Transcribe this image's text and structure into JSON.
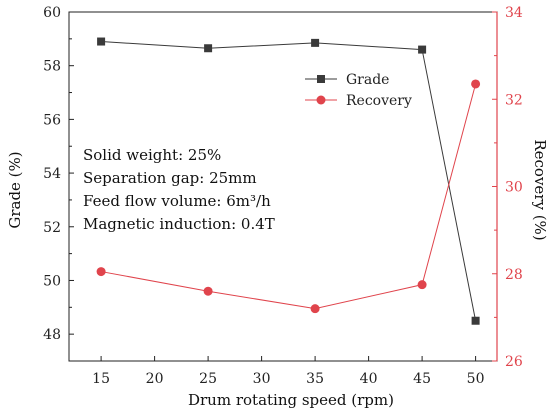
{
  "chart_data": {
    "type": "line",
    "x": [
      15,
      25,
      35,
      45,
      50
    ],
    "xlabel": "Drum rotating speed (rpm)",
    "xticks": [
      15,
      20,
      25,
      30,
      35,
      40,
      45,
      50
    ],
    "xlim": [
      12,
      52
    ],
    "y_left": {
      "label": "Grade (%)",
      "ylim": [
        47,
        60
      ],
      "ticks": [
        48,
        50,
        52,
        54,
        56,
        58,
        60
      ],
      "color": "#222222"
    },
    "y_right": {
      "label": "Recovery (%)",
      "ylim": [
        26,
        34
      ],
      "ticks": [
        26,
        28,
        30,
        32,
        34
      ],
      "color": "#e0444c"
    },
    "series": [
      {
        "name": "Grade",
        "axis": "left",
        "marker": "square",
        "color": "#3a3a3a",
        "values": [
          58.9,
          58.65,
          58.85,
          58.6,
          48.5
        ]
      },
      {
        "name": "Recovery",
        "axis": "right",
        "marker": "circle",
        "color": "#e0444c",
        "values": [
          28.05,
          27.6,
          27.2,
          27.75,
          32.35
        ]
      }
    ],
    "annotations": [
      "Solid weight: 25%",
      "Separation gap: 25mm",
      "Feed flow volume: 6m³/h",
      "Magnetic induction: 0.4T"
    ],
    "legend_position": "top-right",
    "grid": false
  }
}
